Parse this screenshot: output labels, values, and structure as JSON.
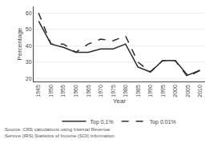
{
  "chart_data": {
    "type": "line",
    "x": [
      1945,
      1950,
      1955,
      1960,
      1965,
      1970,
      1975,
      1980,
      1985,
      1990,
      1995,
      2000,
      2005,
      2010
    ],
    "series": [
      {
        "name": "Top 0.1%",
        "color": "#2b2b2b",
        "line_style": "solid",
        "values": [
          55,
          41,
          39,
          36,
          36,
          38,
          38,
          41,
          27,
          24,
          31,
          31,
          22,
          25
        ]
      },
      {
        "name": "Top 0.01%",
        "color": "#2b2b2b",
        "line_style": "dashed",
        "values": [
          60,
          41,
          41,
          36,
          41,
          44,
          43,
          46,
          30,
          24,
          31,
          31,
          21,
          25
        ]
      }
    ],
    "xlabel": "Year",
    "ylabel": "Percentage",
    "xlim": [
      1943,
      2012
    ],
    "xticks": [
      1945,
      1950,
      1955,
      1960,
      1965,
      1970,
      1975,
      1980,
      1985,
      1990,
      1995,
      2000,
      2005,
      2010
    ],
    "ylim": [
      18,
      64
    ],
    "yticks": [
      20,
      30,
      40,
      50,
      60
    ],
    "grid": "y",
    "legend": "bottom",
    "annotations": [
      "Source: CRS calculations using Internal Revenue Service (IRS) Statistics of Income (SOI) information."
    ]
  }
}
